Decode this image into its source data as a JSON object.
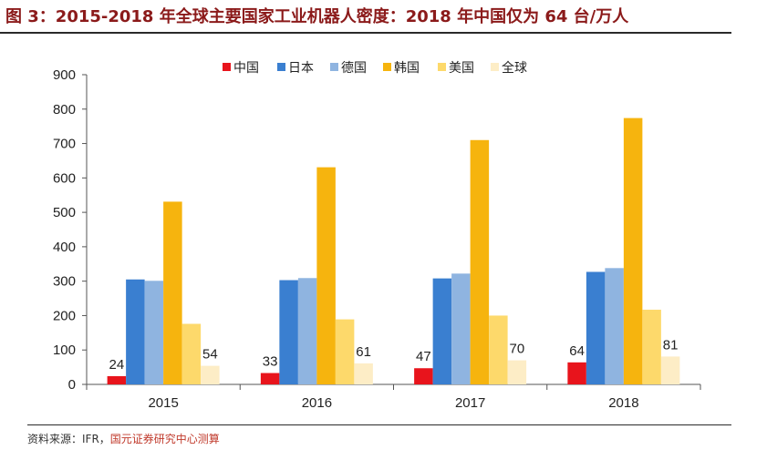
{
  "header": {
    "title": "图 3：2015-2018 年全球主要国家工业机器人密度：2018 年中国仅为 64 台/万人"
  },
  "footer": {
    "source_prefix": "资料来源：IFR，",
    "source_suffix": "国元证券研究中心测算"
  },
  "chart_data": {
    "type": "bar",
    "title": "",
    "xlabel": "",
    "ylabel": "",
    "categories": [
      "2015",
      "2016",
      "2017",
      "2018"
    ],
    "ylim": [
      0,
      900
    ],
    "yticks": [
      0,
      100,
      200,
      300,
      400,
      500,
      600,
      700,
      800,
      900
    ],
    "grid": false,
    "legend_position": "top-center",
    "series": [
      {
        "name": "中国",
        "color": "#e8141c",
        "values": [
          24,
          33,
          47,
          64
        ],
        "labels": [
          "24",
          "33",
          "47",
          "64"
        ]
      },
      {
        "name": "日本",
        "color": "#3a7fd0",
        "values": [
          305,
          303,
          308,
          327
        ]
      },
      {
        "name": "德国",
        "color": "#8fb4e0",
        "values": [
          301,
          309,
          322,
          338
        ]
      },
      {
        "name": "韩国",
        "color": "#f6b40e",
        "values": [
          531,
          631,
          710,
          774
        ]
      },
      {
        "name": "美国",
        "color": "#fdd96b",
        "values": [
          176,
          189,
          200,
          217
        ]
      },
      {
        "name": "全球",
        "color": "#fdedc6",
        "values": [
          54,
          61,
          70,
          81
        ],
        "labels": [
          "54",
          "61",
          "70",
          "81"
        ]
      }
    ]
  }
}
